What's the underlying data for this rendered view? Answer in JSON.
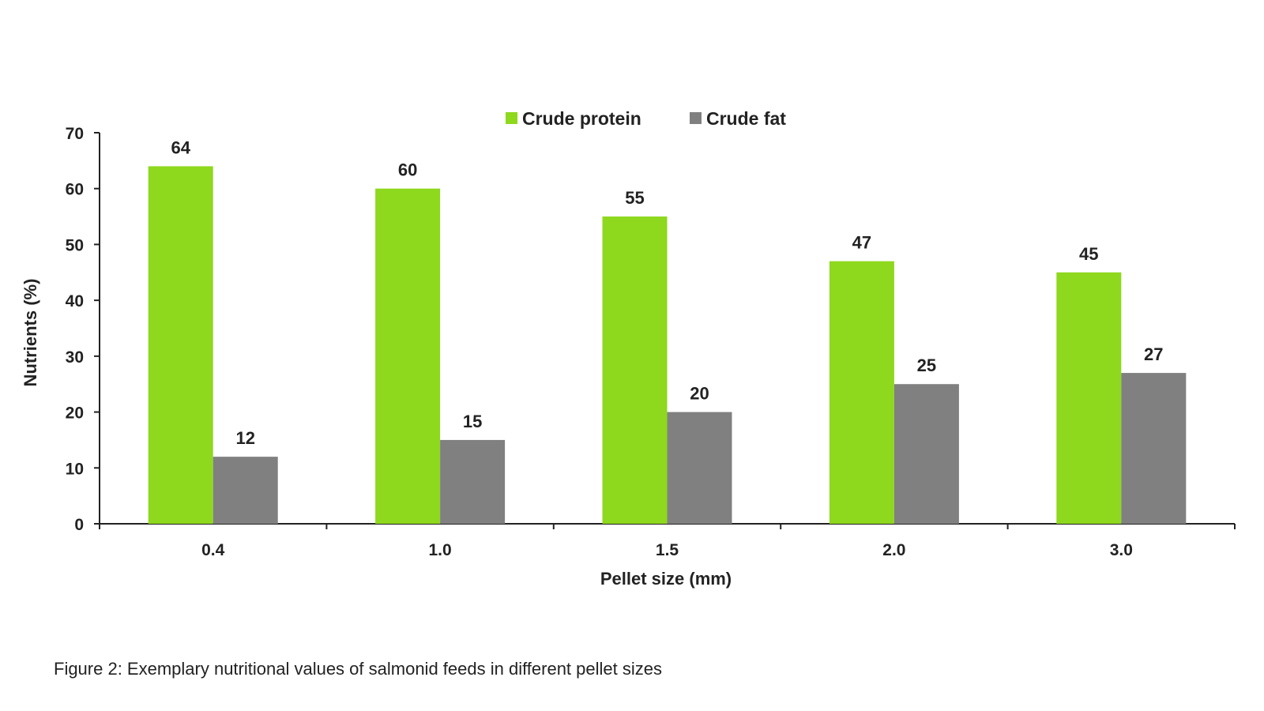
{
  "chart_data": {
    "type": "bar",
    "categories": [
      "0.4",
      "1.0",
      "1.5",
      "2.0",
      "3.0"
    ],
    "series": [
      {
        "name": "Crude protein",
        "values": [
          64,
          60,
          55,
          47,
          45
        ],
        "color": "#8ed81e"
      },
      {
        "name": "Crude fat",
        "values": [
          12,
          15,
          20,
          25,
          27
        ],
        "color": "#808080"
      }
    ],
    "xlabel": "Pellet size (mm)",
    "ylabel": "Nutrients (%)",
    "ylim": [
      0,
      70
    ],
    "yticks": [
      0,
      10,
      20,
      30,
      40,
      50,
      60,
      70
    ],
    "legend_position": "top-center",
    "grid": false
  },
  "caption": "Figure 2: Exemplary nutritional values of salmonid feeds in different pellet sizes"
}
